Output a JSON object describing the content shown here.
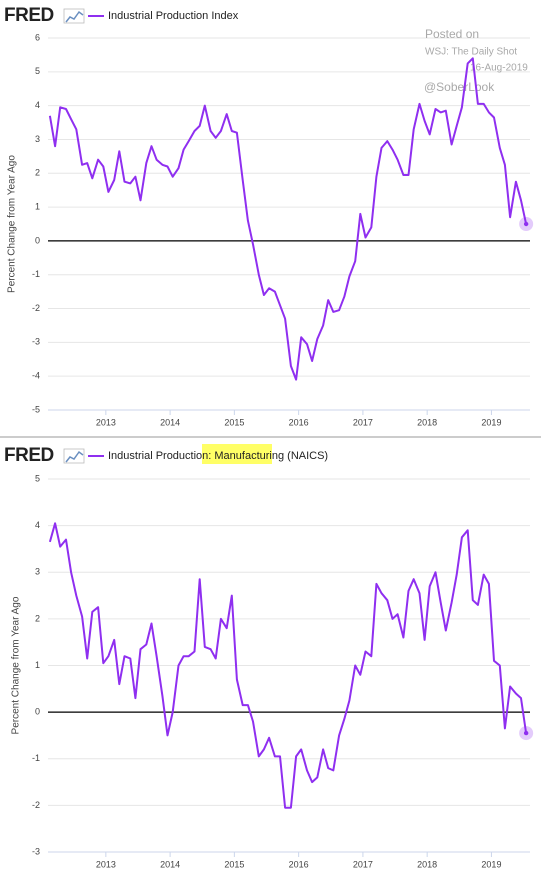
{
  "chart_data": [
    {
      "type": "line",
      "logo": "FRED",
      "ylabel": "Percent Change from Year Ago",
      "annotations": [
        "Posted on",
        "WSJ: The Daily Shot",
        "16-Aug-2019",
        "@SoberLook"
      ],
      "xlim": [
        2012.1,
        2019.6
      ],
      "xticks": [
        2013,
        2014,
        2015,
        2016,
        2017,
        2018,
        2019
      ],
      "ylim": [
        -5,
        6
      ],
      "yticks": [
        -5,
        -4,
        -3,
        -2,
        -1,
        0,
        1,
        2,
        3,
        4,
        5,
        6
      ],
      "grid": true,
      "x": [
        2012.13,
        2012.21,
        2012.29,
        2012.38,
        2012.46,
        2012.54,
        2012.63,
        2012.71,
        2012.79,
        2012.88,
        2012.96,
        2013.04,
        2013.13,
        2013.21,
        2013.29,
        2013.38,
        2013.46,
        2013.54,
        2013.63,
        2013.71,
        2013.79,
        2013.88,
        2013.96,
        2014.04,
        2014.13,
        2014.21,
        2014.29,
        2014.38,
        2014.46,
        2014.54,
        2014.63,
        2014.71,
        2014.79,
        2014.88,
        2014.96,
        2015.04,
        2015.13,
        2015.21,
        2015.29,
        2015.38,
        2015.46,
        2015.54,
        2015.63,
        2015.71,
        2015.79,
        2015.88,
        2015.96,
        2016.04,
        2016.13,
        2016.21,
        2016.29,
        2016.38,
        2016.46,
        2016.54,
        2016.63,
        2016.71,
        2016.79,
        2016.88,
        2016.96,
        2017.04,
        2017.13,
        2017.21,
        2017.29,
        2017.38,
        2017.46,
        2017.54,
        2017.63,
        2017.71,
        2017.79,
        2017.88,
        2017.96,
        2018.04,
        2018.13,
        2018.21,
        2018.29,
        2018.38,
        2018.46,
        2018.54,
        2018.63,
        2018.71,
        2018.79,
        2018.88,
        2018.96,
        2019.04,
        2019.13,
        2019.21,
        2019.29,
        2019.38,
        2019.46,
        2019.54
      ],
      "series": [
        {
          "name": "Industrial Production Index",
          "color": "#8f2ff0",
          "values": [
            3.7,
            2.8,
            3.95,
            3.9,
            3.6,
            3.3,
            2.25,
            2.3,
            1.85,
            2.4,
            2.2,
            1.45,
            1.8,
            2.65,
            1.75,
            1.7,
            1.9,
            1.2,
            2.3,
            2.8,
            2.4,
            2.25,
            2.2,
            1.9,
            2.15,
            2.7,
            2.95,
            3.25,
            3.4,
            4.0,
            3.25,
            3.05,
            3.25,
            3.75,
            3.25,
            3.2,
            1.8,
            0.6,
            -0.1,
            -1.0,
            -1.6,
            -1.4,
            -1.5,
            -1.9,
            -2.3,
            -3.7,
            -4.1,
            -2.85,
            -3.05,
            -3.55,
            -2.9,
            -2.5,
            -1.75,
            -2.1,
            -2.05,
            -1.65,
            -1.05,
            -0.6,
            0.8,
            0.1,
            0.4,
            1.9,
            2.75,
            2.95,
            2.7,
            2.4,
            1.95,
            1.95,
            3.3,
            4.05,
            3.55,
            3.15,
            3.9,
            3.8,
            3.85,
            2.85,
            3.4,
            3.95,
            5.25,
            5.4,
            4.05,
            4.05,
            3.8,
            3.65,
            2.75,
            2.25,
            0.7,
            1.75,
            1.2,
            0.5
          ]
        }
      ]
    },
    {
      "type": "line",
      "logo": "FRED",
      "ylabel": "Percent Change from Year Ago",
      "xlim": [
        2012.1,
        2019.6
      ],
      "xticks": [
        2013,
        2014,
        2015,
        2016,
        2017,
        2018,
        2019
      ],
      "ylim": [
        -3,
        5
      ],
      "yticks": [
        -3,
        -2,
        -1,
        0,
        1,
        2,
        3,
        4,
        5
      ],
      "grid": true,
      "x": [
        2012.13,
        2012.21,
        2012.29,
        2012.38,
        2012.46,
        2012.54,
        2012.63,
        2012.71,
        2012.79,
        2012.88,
        2012.96,
        2013.04,
        2013.13,
        2013.21,
        2013.29,
        2013.38,
        2013.46,
        2013.54,
        2013.63,
        2013.71,
        2013.79,
        2013.88,
        2013.96,
        2014.04,
        2014.13,
        2014.21,
        2014.29,
        2014.38,
        2014.46,
        2014.54,
        2014.63,
        2014.71,
        2014.79,
        2014.88,
        2014.96,
        2015.04,
        2015.13,
        2015.21,
        2015.29,
        2015.38,
        2015.46,
        2015.54,
        2015.63,
        2015.71,
        2015.79,
        2015.88,
        2015.96,
        2016.04,
        2016.13,
        2016.21,
        2016.29,
        2016.38,
        2016.46,
        2016.54,
        2016.63,
        2016.71,
        2016.79,
        2016.88,
        2016.96,
        2017.04,
        2017.13,
        2017.21,
        2017.29,
        2017.38,
        2017.46,
        2017.54,
        2017.63,
        2017.71,
        2017.79,
        2017.88,
        2017.96,
        2018.04,
        2018.13,
        2018.21,
        2018.29,
        2018.38,
        2018.46,
        2018.54,
        2018.63,
        2018.71,
        2018.79,
        2018.88,
        2018.96,
        2019.04,
        2019.13,
        2019.21,
        2019.29,
        2019.38,
        2019.46,
        2019.54
      ],
      "series": [
        {
          "name": "Industrial Production: Manufacturing (NAICS)",
          "color": "#8f2ff0",
          "values": [
            3.65,
            4.05,
            3.55,
            3.7,
            3.0,
            2.5,
            2.05,
            1.15,
            2.15,
            2.25,
            1.05,
            1.2,
            1.55,
            0.6,
            1.2,
            1.15,
            0.3,
            1.35,
            1.45,
            1.9,
            1.2,
            0.35,
            -0.5,
            0.0,
            1.0,
            1.2,
            1.2,
            1.3,
            2.85,
            1.4,
            1.35,
            1.15,
            2.0,
            1.8,
            2.5,
            0.7,
            0.15,
            0.15,
            -0.2,
            -0.95,
            -0.8,
            -0.55,
            -0.95,
            -0.95,
            -2.05,
            -2.05,
            -0.95,
            -0.8,
            -1.25,
            -1.5,
            -1.4,
            -0.8,
            -1.2,
            -1.25,
            -0.5,
            -0.15,
            0.25,
            1.0,
            0.8,
            1.3,
            1.2,
            2.75,
            2.55,
            2.4,
            2.0,
            2.1,
            1.6,
            2.6,
            2.85,
            2.55,
            1.55,
            2.7,
            3.0,
            2.35,
            1.75,
            2.35,
            2.95,
            3.75,
            3.9,
            2.4,
            2.3,
            2.95,
            2.75,
            1.1,
            1.0,
            -0.35,
            0.55,
            0.4,
            0.3,
            -0.45
          ]
        }
      ]
    }
  ]
}
